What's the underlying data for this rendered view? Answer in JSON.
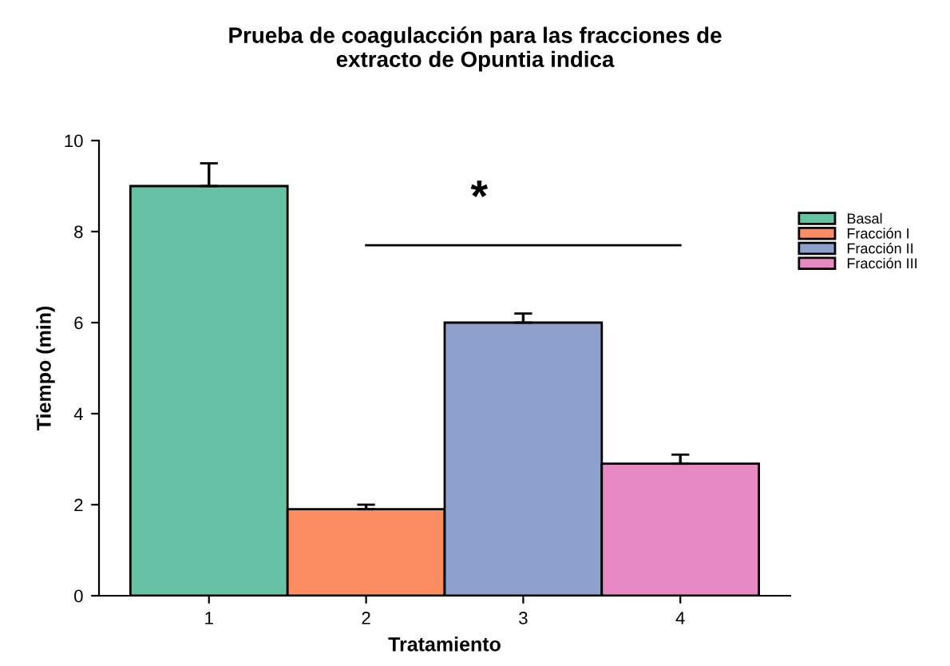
{
  "chart_data": {
    "type": "bar",
    "title": "Prueba de coagulacción para las fracciones de\nextracto de Opuntia indica",
    "xlabel": "Tratamiento",
    "ylabel": "Tiempo (min)",
    "categories": [
      "1",
      "2",
      "3",
      "4"
    ],
    "series": [
      {
        "name": "Basal",
        "color": "#66c2a5",
        "values": [
          9.0,
          null,
          null,
          null
        ],
        "errors": [
          [
            9.0,
            9.5
          ],
          null,
          null,
          null
        ]
      },
      {
        "name": "Fracción I",
        "color": "#fc8d62",
        "values": [
          null,
          1.9,
          null,
          null
        ],
        "errors": [
          null,
          [
            1.9,
            2.0
          ],
          null,
          null
        ]
      },
      {
        "name": "Fracción II",
        "color": "#8da0cb",
        "values": [
          null,
          null,
          6.0,
          null
        ],
        "errors": [
          null,
          null,
          [
            6.0,
            6.2
          ],
          null
        ]
      },
      {
        "name": "Fracción III",
        "color": "#e78ac3",
        "values": [
          null,
          null,
          null,
          2.9
        ],
        "errors": [
          null,
          null,
          null,
          [
            2.9,
            3.1
          ]
        ]
      },
      {
        "type": "line",
        "color": "#000000",
        "values": [
          null,
          7.7,
          7.7,
          7.7
        ],
        "marker": "none"
      }
    ],
    "ylim": [
      0,
      10
    ],
    "yticks": [
      0,
      2,
      4,
      6,
      8,
      10
    ],
    "annotations": [
      "*"
    ],
    "legend": "right",
    "grid": false
  }
}
